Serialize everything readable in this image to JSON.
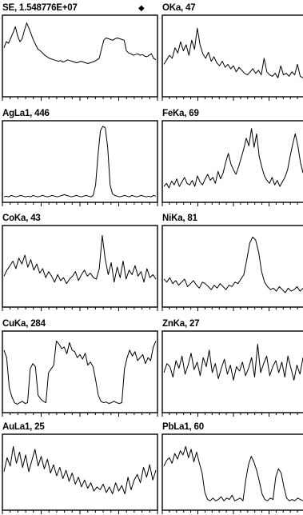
{
  "figure": {
    "marker_symbol": "◆"
  },
  "chart_data": [
    {
      "type": "line",
      "title": "SE, 1.548776E+07",
      "y": [
        62,
        70,
        68,
        75,
        82,
        90,
        78,
        70,
        74,
        85,
        95,
        88,
        80,
        72,
        66,
        60,
        58,
        55,
        52,
        50,
        48,
        47,
        46,
        45,
        44,
        45,
        43,
        44,
        46,
        45,
        44,
        43,
        42,
        43,
        44,
        43,
        42,
        41,
        42,
        43,
        44,
        46,
        48,
        60,
        72,
        75,
        74,
        73,
        72,
        74,
        75,
        74,
        73,
        72,
        58,
        55,
        54,
        52,
        53,
        54,
        52,
        53,
        51,
        50,
        52,
        54,
        48,
        46
      ]
    },
    {
      "type": "line",
      "title": "OKa, 47",
      "y": [
        40,
        46,
        52,
        48,
        62,
        55,
        70,
        58,
        66,
        52,
        72,
        60,
        88,
        66,
        54,
        48,
        56,
        44,
        50,
        42,
        38,
        44,
        36,
        40,
        34,
        38,
        30,
        36,
        32,
        28,
        26,
        30,
        34,
        28,
        32,
        26,
        48,
        30,
        26,
        24,
        28,
        22,
        38,
        26,
        28,
        24,
        30,
        26,
        40,
        24,
        22
      ]
    },
    {
      "type": "line",
      "title": "AgLa1, 446",
      "y": [
        4,
        5,
        4,
        6,
        5,
        4,
        5,
        6,
        5,
        4,
        5,
        4,
        6,
        5,
        4,
        5,
        6,
        5,
        4,
        5,
        6,
        5,
        4,
        5,
        6,
        7,
        6,
        5,
        4,
        5,
        6,
        5,
        4,
        5,
        6,
        5,
        4,
        6,
        20,
        60,
        92,
        98,
        96,
        70,
        20,
        8,
        6,
        5,
        4,
        5,
        6,
        5,
        4,
        6,
        5,
        4,
        5,
        6,
        5,
        4,
        5,
        4,
        6,
        5
      ]
    },
    {
      "type": "line",
      "title": "FeKa, 69",
      "y": [
        18,
        22,
        16,
        25,
        20,
        28,
        18,
        24,
        30,
        22,
        20,
        26,
        18,
        32,
        24,
        20,
        28,
        34,
        26,
        30,
        22,
        38,
        28,
        36,
        50,
        62,
        48,
        40,
        34,
        44,
        56,
        68,
        82,
        72,
        95,
        70,
        88,
        58,
        44,
        32,
        26,
        22,
        30,
        20,
        26,
        18,
        24,
        30,
        40,
        58,
        74,
        88,
        72,
        50,
        36
      ]
    },
    {
      "type": "line",
      "title": "CoKa, 43",
      "y": [
        38,
        46,
        52,
        58,
        48,
        62,
        54,
        66,
        50,
        60,
        46,
        54,
        42,
        48,
        36,
        44,
        38,
        30,
        40,
        32,
        36,
        28,
        34,
        38,
        44,
        32,
        40,
        46,
        38,
        42,
        36,
        34,
        48,
        92,
        60,
        40,
        56,
        30,
        50,
        36,
        58,
        34,
        46,
        40,
        52,
        38,
        44,
        30,
        48,
        36,
        40,
        34
      ]
    },
    {
      "type": "line",
      "title": "NiKa, 81",
      "y": [
        34,
        30,
        36,
        28,
        32,
        26,
        30,
        34,
        24,
        28,
        32,
        26,
        22,
        30,
        28,
        24,
        20,
        26,
        22,
        28,
        24,
        20,
        26,
        24,
        30,
        28,
        34,
        40,
        60,
        82,
        90,
        86,
        70,
        44,
        30,
        24,
        20,
        22,
        18,
        24,
        20,
        16,
        22,
        18,
        20,
        24,
        18,
        22
      ]
    },
    {
      "type": "line",
      "title": "CuKa, 284",
      "y": [
        80,
        70,
        30,
        18,
        10,
        8,
        10,
        12,
        9,
        10,
        55,
        62,
        58,
        20,
        15,
        12,
        10,
        50,
        55,
        60,
        92,
        88,
        82,
        84,
        75,
        90,
        80,
        78,
        70,
        74,
        68,
        76,
        60,
        64,
        58,
        40,
        20,
        12,
        10,
        11,
        9,
        10,
        12,
        10,
        9,
        10,
        55,
        70,
        80,
        72,
        78,
        66,
        70,
        74,
        62,
        70,
        66,
        84,
        92
      ]
    },
    {
      "type": "line",
      "title": "ZnKa, 27",
      "y": [
        50,
        62,
        58,
        44,
        66,
        56,
        72,
        48,
        60,
        76,
        54,
        64,
        46,
        70,
        58,
        80,
        50,
        62,
        42,
        56,
        68,
        48,
        60,
        40,
        58,
        52,
        64,
        46,
        56,
        70,
        44,
        88,
        50,
        62,
        72,
        46,
        58,
        66,
        50,
        64,
        44,
        72,
        56,
        40,
        60,
        48,
        70
      ]
    },
    {
      "type": "line",
      "title": "AuLa1, 25",
      "y": [
        52,
        72,
        60,
        88,
        64,
        80,
        58,
        76,
        52,
        68,
        84,
        60,
        74,
        56,
        70,
        50,
        62,
        46,
        58,
        42,
        54,
        38,
        50,
        34,
        44,
        30,
        40,
        28,
        36,
        24,
        30,
        26,
        34,
        22,
        30,
        20,
        36,
        24,
        32,
        20,
        44,
        26,
        40,
        48,
        36,
        58,
        44,
        62,
        40,
        54
      ]
    },
    {
      "type": "line",
      "title": "PbLa1, 60",
      "y": [
        60,
        68,
        72,
        64,
        78,
        70,
        82,
        76,
        88,
        72,
        84,
        66,
        80,
        64,
        50,
        22,
        12,
        10,
        14,
        10,
        12,
        16,
        10,
        14,
        12,
        18,
        10,
        12,
        14,
        10,
        40,
        62,
        74,
        66,
        54,
        38,
        20,
        12,
        10,
        14,
        12,
        44,
        56,
        50,
        30,
        14,
        10,
        12,
        10,
        14,
        12,
        10
      ]
    }
  ]
}
